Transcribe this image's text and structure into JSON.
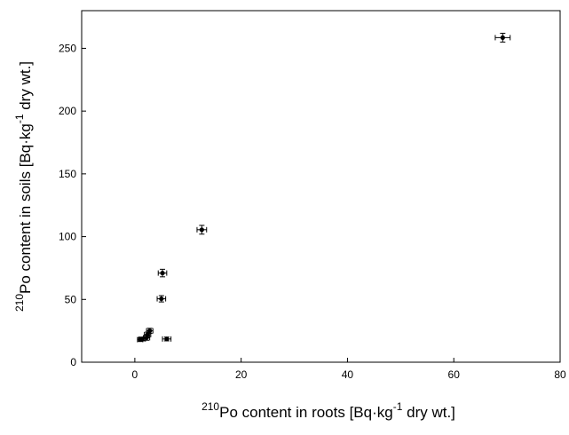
{
  "chart_data": {
    "type": "scatter",
    "title": "",
    "xlabel": {
      "sup_prefix": "210",
      "pre": "Po content in roots [Bq·kg",
      "sup_mid": "-1",
      "post": " dry wt.]"
    },
    "ylabel": {
      "sup_prefix": "210",
      "pre": "Po content in soils [Bq·kg",
      "sup_mid": "-1",
      "post": " dry wt.]"
    },
    "xlim": [
      -10,
      80
    ],
    "ylim": [
      0,
      280
    ],
    "x_ticks": [
      "0",
      "20",
      "40",
      "60",
      "80"
    ],
    "y_ticks": [
      "0",
      "50",
      "100",
      "150",
      "200",
      "250"
    ],
    "grid": false,
    "legend": "none",
    "marker_color": "#000000",
    "points": [
      {
        "x": 69.2,
        "y": 258.5,
        "xerr": 1.4,
        "yerr": 3.5
      },
      {
        "x": 12.6,
        "y": 105.5,
        "xerr": 0.9,
        "yerr": 3.5
      },
      {
        "x": 5.2,
        "y": 71.0,
        "xerr": 0.8,
        "yerr": 3.0
      },
      {
        "x": 5.0,
        "y": 50.5,
        "xerr": 0.8,
        "yerr": 2.5
      },
      {
        "x": 2.8,
        "y": 25.0,
        "xerr": 0.6,
        "yerr": 2.0
      },
      {
        "x": 2.4,
        "y": 22.0,
        "xerr": 0.6,
        "yerr": 2.0
      },
      {
        "x": 2.2,
        "y": 19.5,
        "xerr": 0.6,
        "yerr": 2.0
      },
      {
        "x": 1.4,
        "y": 18.5,
        "xerr": 0.6,
        "yerr": 1.5
      },
      {
        "x": 1.0,
        "y": 18.0,
        "xerr": 0.5,
        "yerr": 1.5
      },
      {
        "x": 6.0,
        "y": 18.5,
        "xerr": 0.8,
        "yerr": 1.5
      }
    ]
  }
}
